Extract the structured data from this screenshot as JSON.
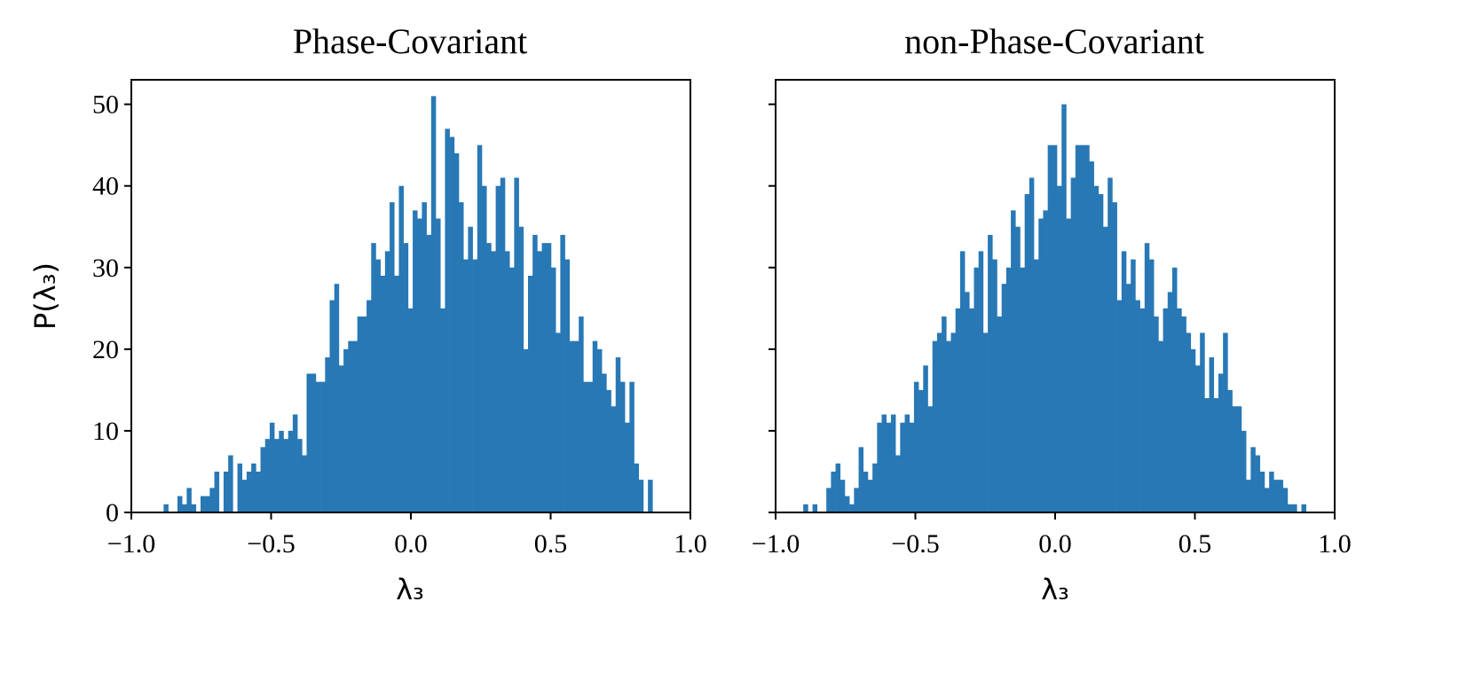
{
  "colors": {
    "bar": "#2878b5",
    "frame": "#000000"
  },
  "chart_data": [
    {
      "type": "bar",
      "title": "Phase-Covariant",
      "xlabel": "λ₃",
      "ylabel": "P(λ₃)",
      "xlim": [
        -1.0,
        1.0
      ],
      "ylim": [
        0,
        53
      ],
      "x_ticks": [
        "−1.0",
        "−0.5",
        "0.0",
        "0.5",
        "1.0"
      ],
      "y_ticks": [
        "0",
        "10",
        "20",
        "30",
        "40",
        "50"
      ],
      "bin_start": -1.0,
      "bin_width": 0.0165,
      "values": [
        0,
        0,
        0,
        0,
        0,
        0,
        0,
        1,
        0,
        0,
        2,
        1,
        3,
        1,
        0,
        2,
        2,
        3,
        5,
        0,
        5,
        7,
        0,
        6,
        4,
        5,
        6,
        5,
        8,
        9,
        11,
        9,
        10,
        9,
        10,
        12,
        9,
        7,
        17,
        17,
        16,
        16,
        19,
        26,
        28,
        18,
        20,
        21,
        21,
        24,
        24,
        26,
        33,
        31,
        29,
        32,
        38,
        29,
        40,
        33,
        25,
        37,
        36,
        38,
        34,
        51,
        36,
        25,
        47,
        46,
        44,
        38,
        31,
        35,
        31,
        45,
        40,
        33,
        32,
        40,
        41,
        32,
        30,
        41,
        35,
        20,
        29,
        34,
        32,
        33,
        33,
        30,
        22,
        34,
        31,
        21,
        21,
        24,
        16,
        16,
        21,
        20,
        17,
        15,
        13,
        19,
        16,
        11,
        16,
        6,
        4,
        0,
        4
      ],
      "series_name": ""
    },
    {
      "type": "bar",
      "title": "non-Phase-Covariant",
      "xlabel": "λ₃",
      "ylabel": "",
      "xlim": [
        -1.0,
        1.0
      ],
      "ylim": [
        0,
        53
      ],
      "x_ticks": [
        "−1.0",
        "−0.5",
        "0.0",
        "0.5",
        "1.0"
      ],
      "y_ticks": [
        "0",
        "10",
        "20",
        "30",
        "40",
        "50"
      ],
      "bin_start": -1.0,
      "bin_width": 0.0165,
      "values": [
        0,
        0,
        0,
        0,
        0,
        0,
        1,
        0,
        1,
        0,
        0,
        3,
        5,
        6,
        4,
        2,
        1,
        3,
        8,
        5,
        4,
        6,
        11,
        12,
        11,
        12,
        7,
        11,
        12,
        11,
        16,
        15,
        18,
        13,
        21,
        22,
        24,
        21,
        22,
        25,
        32,
        27,
        25,
        30,
        32,
        22,
        34,
        31,
        24,
        28,
        30,
        37,
        35,
        30,
        39,
        41,
        31,
        36,
        37,
        45,
        45,
        40,
        50,
        36,
        41,
        45,
        45,
        45,
        43,
        40,
        39,
        35,
        41,
        38,
        26,
        32,
        28,
        31,
        26,
        25,
        33,
        31,
        24,
        21,
        25,
        27,
        30,
        25,
        24,
        22,
        20,
        18,
        22,
        14,
        19,
        14,
        17,
        22,
        15,
        13,
        13,
        10,
        4,
        8,
        7,
        5,
        3,
        5,
        4,
        4,
        3,
        1,
        1,
        0,
        1,
        0,
        0
      ],
      "series_name": ""
    }
  ]
}
